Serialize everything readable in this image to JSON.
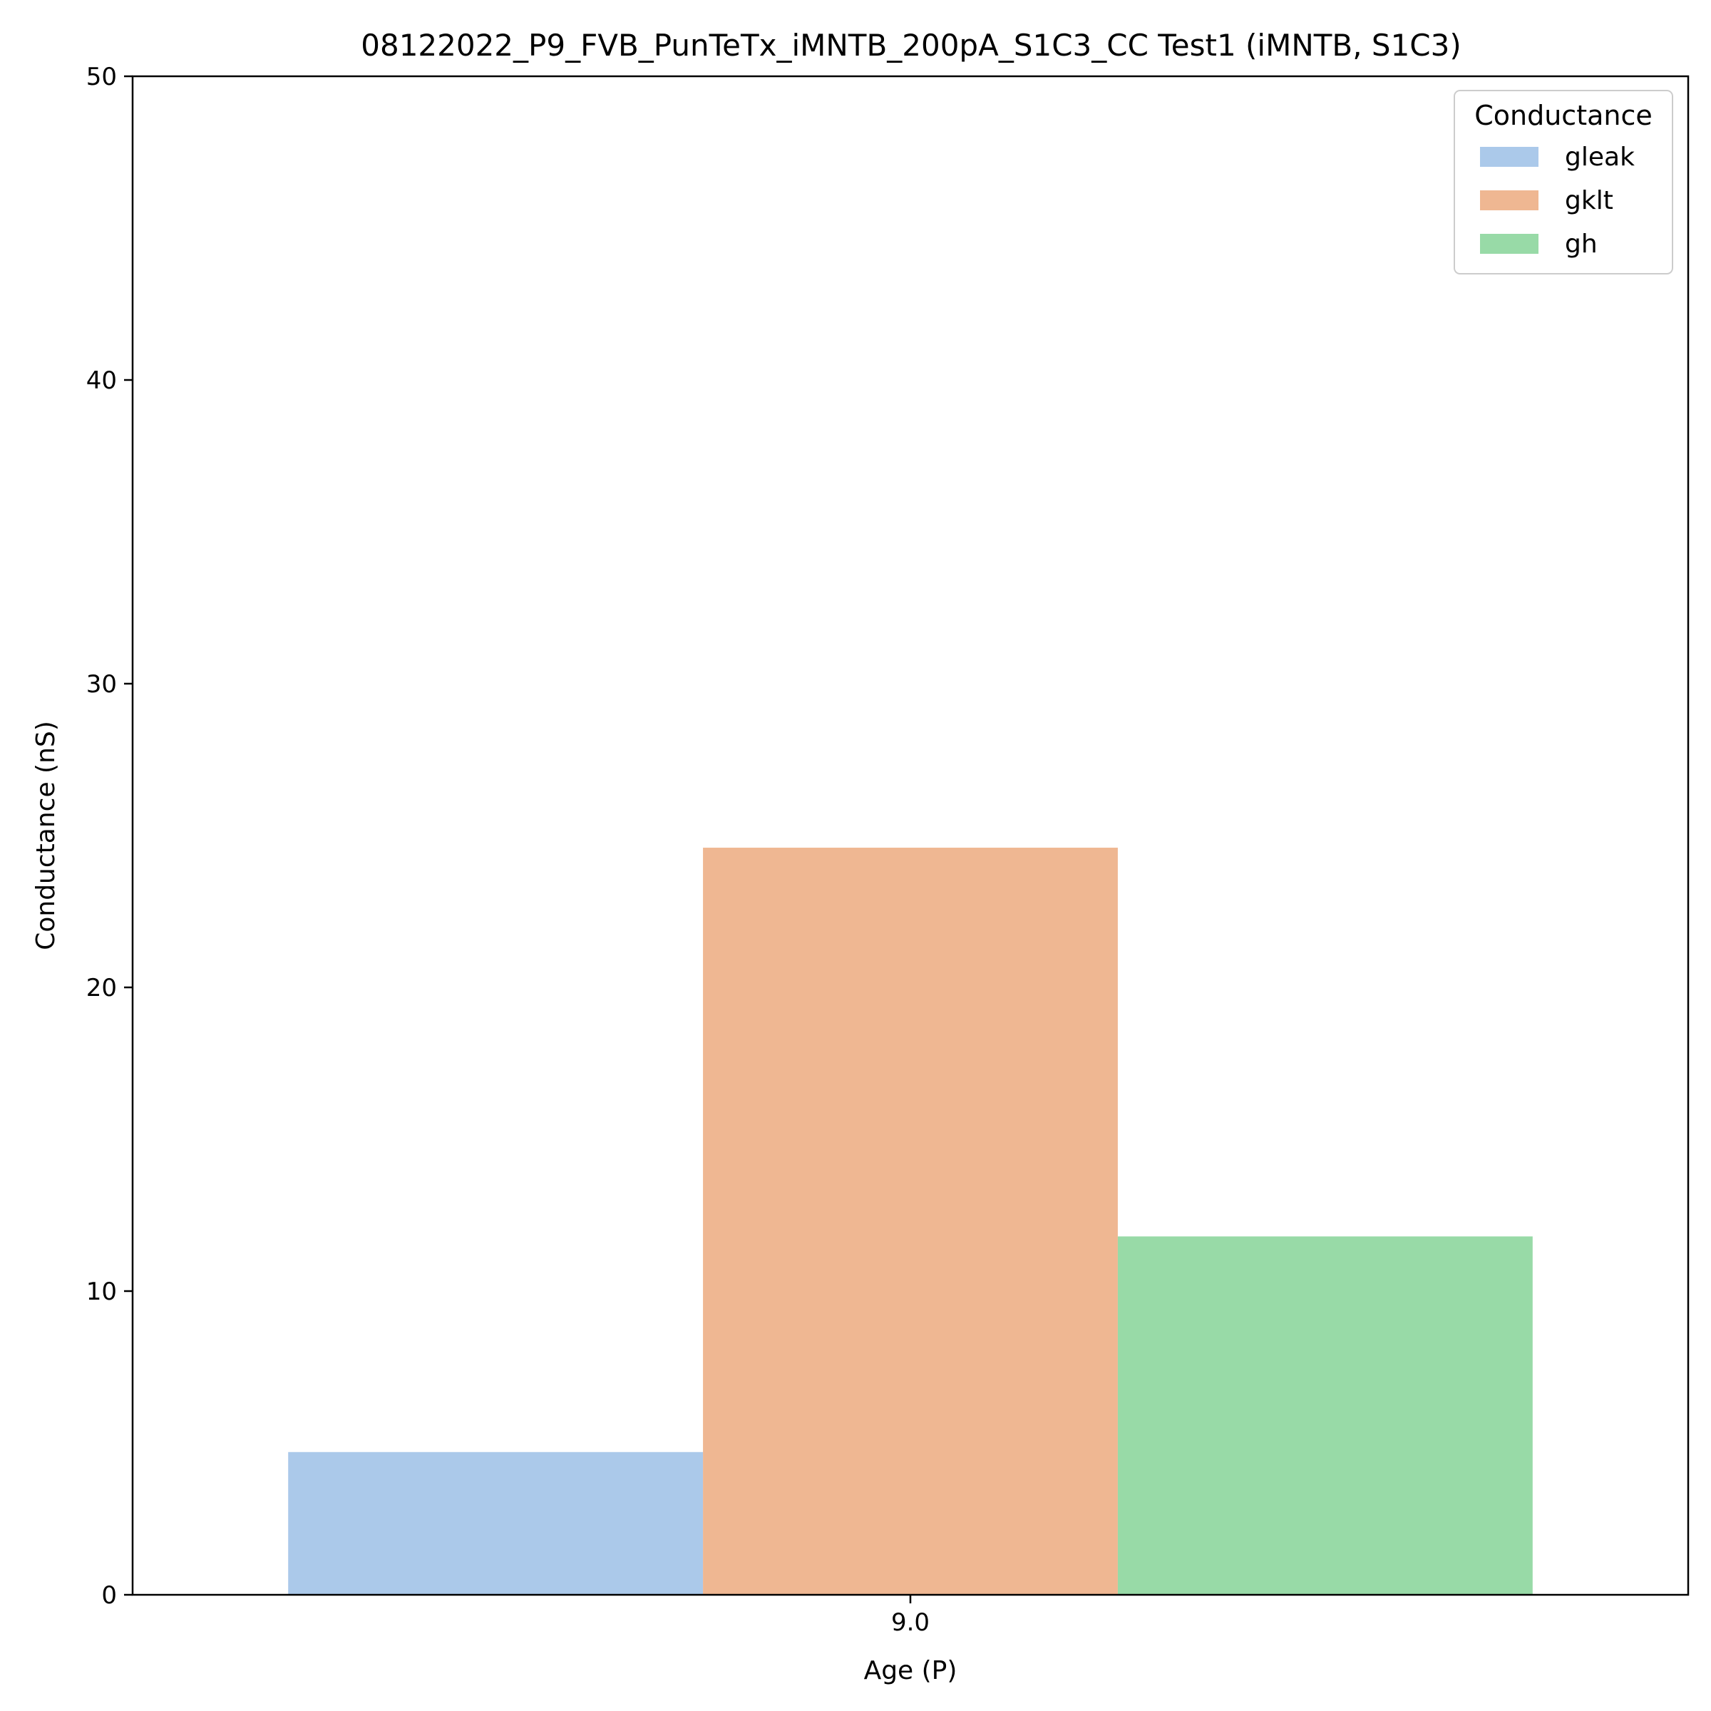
{
  "chart_data": {
    "type": "bar",
    "title": "08122022_P9_FVB_PunTeTx_iMNTB_200pA_S1C3_CC Test1 (iMNTB, S1C3)",
    "xlabel": "Age (P)",
    "ylabel": "Conductance (nS)",
    "categories": [
      "9.0"
    ],
    "ylim": [
      0,
      50
    ],
    "yticks": [
      "0",
      "10",
      "20",
      "30",
      "40",
      "50"
    ],
    "grid": false,
    "legend": {
      "title": "Conductance",
      "placement": "top-right"
    },
    "series": [
      {
        "name": "gleak",
        "values": [
          4.7
        ],
        "color": "#abc9ea"
      },
      {
        "name": "gklt",
        "values": [
          24.6
        ],
        "color": "#efb792"
      },
      {
        "name": "gh",
        "values": [
          11.8
        ],
        "color": "#98daa7"
      }
    ]
  }
}
